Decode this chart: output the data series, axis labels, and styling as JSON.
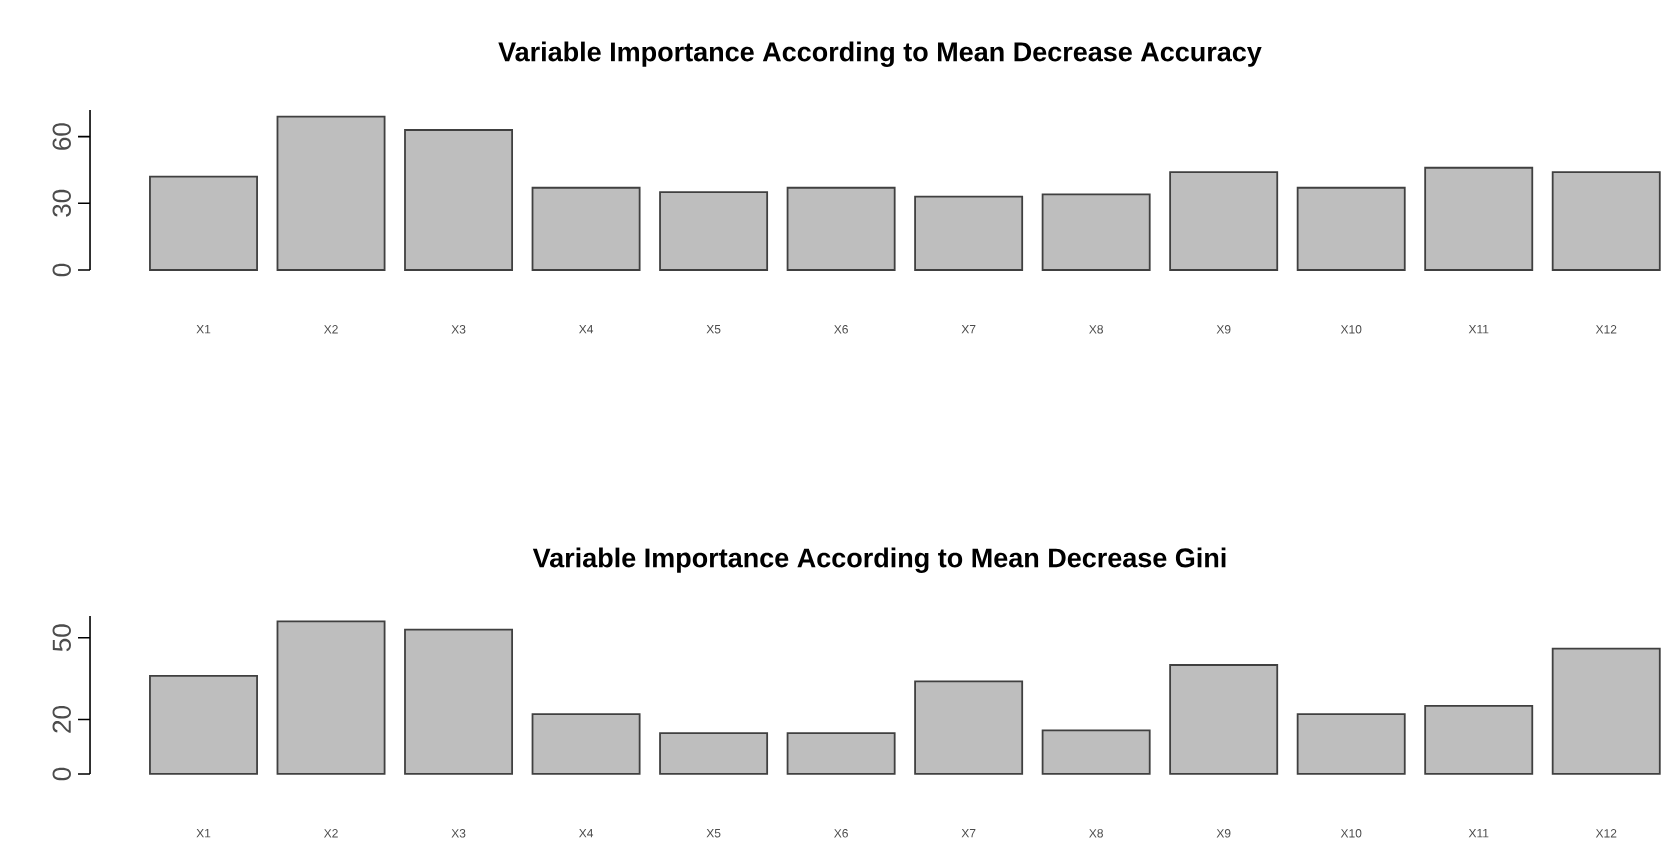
{
  "chart_data": [
    {
      "type": "bar",
      "title": "Variable Importance According to Mean Decrease Accuracy",
      "categories": [
        "X1",
        "X2",
        "X3",
        "X4",
        "X5",
        "X6",
        "X7",
        "X8",
        "X9",
        "X10",
        "X11",
        "X12"
      ],
      "values": [
        42,
        69,
        63,
        37,
        35,
        37,
        33,
        34,
        44,
        37,
        46,
        44
      ],
      "color": "#bebebe",
      "ylim": [
        0,
        72
      ],
      "yticks": [
        0,
        30,
        60
      ]
    },
    {
      "type": "bar",
      "title": "Variable Importance According to Mean Decrease Gini",
      "categories": [
        "X1",
        "X2",
        "X3",
        "X4",
        "X5",
        "X6",
        "X7",
        "X8",
        "X9",
        "X10",
        "X11",
        "X12"
      ],
      "values": [
        36,
        56,
        53,
        22,
        15,
        15,
        34,
        16,
        40,
        22,
        25,
        46
      ],
      "color": "#bebebe",
      "ylim": [
        0,
        58
      ],
      "yticks": [
        0,
        20,
        50
      ]
    }
  ]
}
